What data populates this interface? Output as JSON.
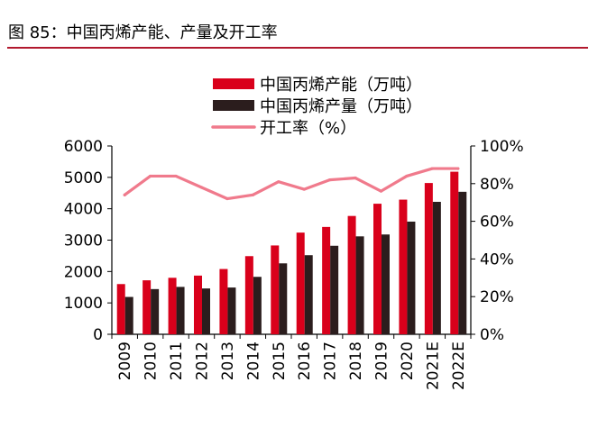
{
  "figure": {
    "title": "图 85：中国丙烯产能、产量及开工率",
    "header_line_color": "#b2192e"
  },
  "chart_data": {
    "type": "bar",
    "categories": [
      "2009",
      "2010",
      "2011",
      "2012",
      "2013",
      "2014",
      "2015",
      "2016",
      "2017",
      "2018",
      "2019",
      "2020",
      "2021E",
      "2022E"
    ],
    "series": [
      {
        "name": "中国丙烯产能（万吨）",
        "type": "bar",
        "axis": "left",
        "color": "#d9001b",
        "values": [
          1600,
          1720,
          1800,
          1870,
          2080,
          2490,
          2830,
          3240,
          3420,
          3770,
          4160,
          4290,
          4820,
          5180
        ]
      },
      {
        "name": "中国丙烯产量（万吨）",
        "type": "bar",
        "axis": "left",
        "color": "#2b1d1d",
        "values": [
          1190,
          1440,
          1510,
          1460,
          1490,
          1830,
          2260,
          2520,
          2820,
          3120,
          3180,
          3590,
          4220,
          4540
        ]
      },
      {
        "name": "开工率（%）",
        "type": "line",
        "axis": "right",
        "color": "#f07a8c",
        "values": [
          74,
          84,
          84,
          78,
          72,
          74,
          81,
          77,
          82,
          83,
          76,
          84,
          88,
          88
        ]
      }
    ],
    "y_left": {
      "min": 0,
      "max": 6000,
      "ticks": [
        0,
        1000,
        2000,
        3000,
        4000,
        5000,
        6000
      ]
    },
    "y_right": {
      "min": 0,
      "max": 100,
      "ticks": [
        0,
        20,
        40,
        60,
        80,
        100
      ],
      "tick_suffix": "%"
    },
    "legend_position": "top-center",
    "grid": false
  }
}
